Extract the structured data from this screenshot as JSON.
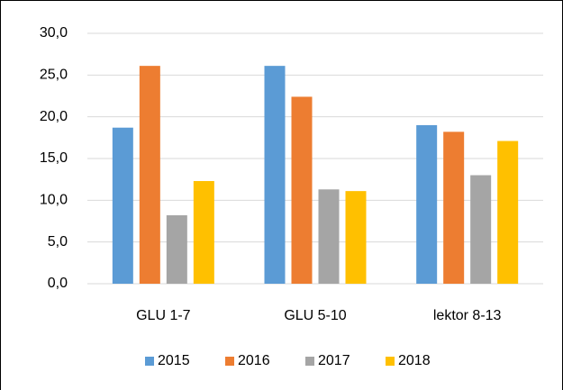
{
  "chart_data": {
    "type": "bar",
    "categories": [
      "GLU 1-7",
      "GLU 5-10",
      "lektor 8-13"
    ],
    "series": [
      {
        "name": "2015",
        "color": "#5b9bd5",
        "values": [
          18.7,
          26.1,
          19.0
        ]
      },
      {
        "name": "2016",
        "color": "#ed7d31",
        "values": [
          26.1,
          22.4,
          18.2
        ]
      },
      {
        "name": "2017",
        "color": "#a5a5a5",
        "values": [
          8.2,
          11.3,
          13.0
        ]
      },
      {
        "name": "2018",
        "color": "#ffc000",
        "values": [
          12.3,
          11.1,
          17.1
        ]
      }
    ],
    "ylim": [
      0,
      30
    ],
    "yticks": [
      {
        "value": 0,
        "label": "0,0"
      },
      {
        "value": 5,
        "label": "5,0"
      },
      {
        "value": 10,
        "label": "10,0"
      },
      {
        "value": 15,
        "label": "15,0"
      },
      {
        "value": 20,
        "label": "20,0"
      },
      {
        "value": 25,
        "label": "25,0"
      },
      {
        "value": 30,
        "label": "30,0"
      }
    ],
    "grid": true,
    "legend": "bottom"
  }
}
